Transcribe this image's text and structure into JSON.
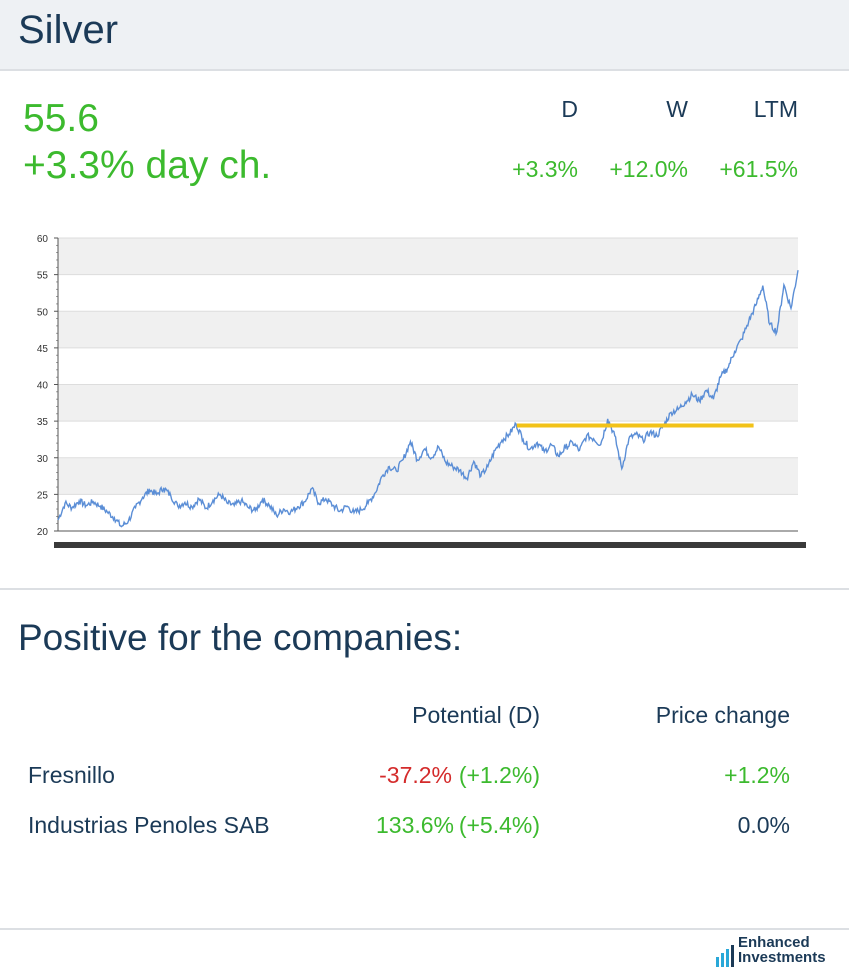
{
  "header": {
    "title": "Silver"
  },
  "quote": {
    "price": "55.6",
    "day_change": "+3.3% day ch."
  },
  "performance": [
    {
      "label": "D",
      "value": "+3.3%"
    },
    {
      "label": "W",
      "value": "+12.0%"
    },
    {
      "label": "LTM",
      "value": "+61.5%"
    }
  ],
  "colors": {
    "line": "#5b8ed6",
    "level": "#f2c218",
    "positive": "#3cba2e",
    "negative": "#d42b2b",
    "band": "#f0f0f0"
  },
  "chart_data": {
    "type": "line",
    "ylim": [
      20,
      60
    ],
    "yticks": [
      20,
      25,
      30,
      35,
      40,
      45,
      50,
      55,
      60
    ],
    "grid": true,
    "series": [
      {
        "values": [
          21.5,
          23.8,
          23.2,
          24.1,
          23.5,
          24.0,
          23.4,
          22.6,
          21.8,
          20.6,
          21.4,
          23.2,
          24.6,
          25.6,
          25.0,
          25.9,
          24.8,
          23.4,
          23.9,
          23.3,
          24.4,
          23.1,
          24.2,
          25.0,
          23.8,
          23.5,
          24.1,
          23.2,
          22.8,
          24.3,
          23.5,
          22.1,
          23.0,
          22.6,
          23.3,
          24.0,
          25.8,
          23.8,
          24.4,
          23.5,
          22.7,
          23.4,
          22.5,
          22.9,
          23.8,
          25.2,
          27.5,
          28.8,
          28.2,
          29.8,
          32.2,
          29.7,
          31.2,
          30.0,
          31.5,
          29.4,
          28.8,
          28.3,
          27.2,
          29.5,
          27.5,
          28.8,
          31.0,
          32.4,
          33.2,
          34.6,
          32.5,
          31.2,
          32.1,
          30.8,
          31.8,
          30.2,
          31.4,
          32.1,
          31.0,
          33.0,
          32.6,
          31.8,
          35.3,
          33.0,
          28.5,
          32.6,
          33.2,
          32.4,
          33.5,
          33.0,
          34.5,
          36.2,
          36.6,
          37.6,
          38.6,
          37.8,
          39.2,
          38.0,
          41.0,
          42.2,
          44.5,
          46.2,
          48.6,
          50.8,
          53.5,
          48.2,
          47.2,
          53.6,
          50.4,
          55.6
        ],
        "level_line": 34.4,
        "level_range_fraction": [
          0.62,
          0.94
        ]
      }
    ]
  },
  "section": {
    "title": "Positive for the companies:"
  },
  "table": {
    "headers": {
      "potential": "Potential (D)",
      "price_change": "Price change"
    },
    "rows": [
      {
        "name": "Fresnillo",
        "potential": "-37.2%",
        "potential_change": "(+1.2%)",
        "price_change": "+1.2%",
        "potential_sign": "neg",
        "price_sign": "pos"
      },
      {
        "name": "Industrias Penoles SAB",
        "potential": "133.6%",
        "potential_change": "(+5.4%)",
        "price_change": "0.0%",
        "potential_sign": "pos",
        "price_sign": "neu"
      }
    ]
  },
  "footer": {
    "logo_line1": "Enhanced",
    "logo_line2": "Investments"
  }
}
